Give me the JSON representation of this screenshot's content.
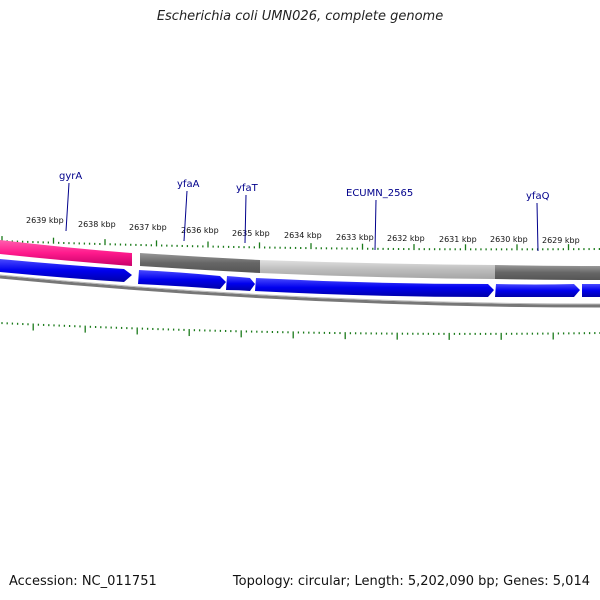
{
  "title": "Escherichia coli UMN026, complete genome",
  "footer": {
    "accession": "Accession: NC_011751",
    "topology": "Topology: circular; Length: 5,202,090 bp; Genes: 5,014"
  },
  "ticks": [
    "2639 kbp",
    "2638 kbp",
    "2637 kbp",
    "2636 kbp",
    "2635 kbp",
    "2634 kbp",
    "2633 kbp",
    "2632 kbp",
    "2631 kbp",
    "2630 kbp",
    "2629 kbp"
  ],
  "genes": [
    "gyrA",
    "yfaA",
    "yfaT",
    "ECUMN_2565",
    "yfaQ"
  ],
  "colors": {
    "pink": "#ff1a8c",
    "blue": "#0000ee",
    "tick_green": "#1a7a1a",
    "label_blue": "#00008b",
    "ring_gray": "#888888"
  }
}
